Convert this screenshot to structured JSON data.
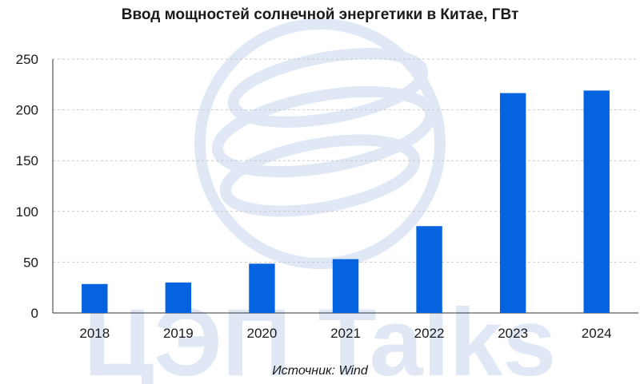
{
  "chart_data": {
    "type": "bar",
    "title": "Ввод мощностей солнечной энергетики в Китае, ГВт",
    "xlabel": "",
    "ylabel": "",
    "categories": [
      "2018",
      "2019",
      "2020",
      "2021",
      "2022",
      "2023",
      "2024"
    ],
    "values": [
      28.5,
      30,
      48.5,
      53,
      85.5,
      216.5,
      219
    ],
    "ylim": [
      0,
      250
    ],
    "yticks": [
      0,
      50,
      100,
      150,
      200,
      250
    ],
    "grid": true,
    "bar_color": "#0563e0",
    "source": "Источник: Wind"
  },
  "watermark": {
    "text": "ЦЭП Talks",
    "color": "#c7d6ee",
    "icon": "globe-logo-icon"
  }
}
